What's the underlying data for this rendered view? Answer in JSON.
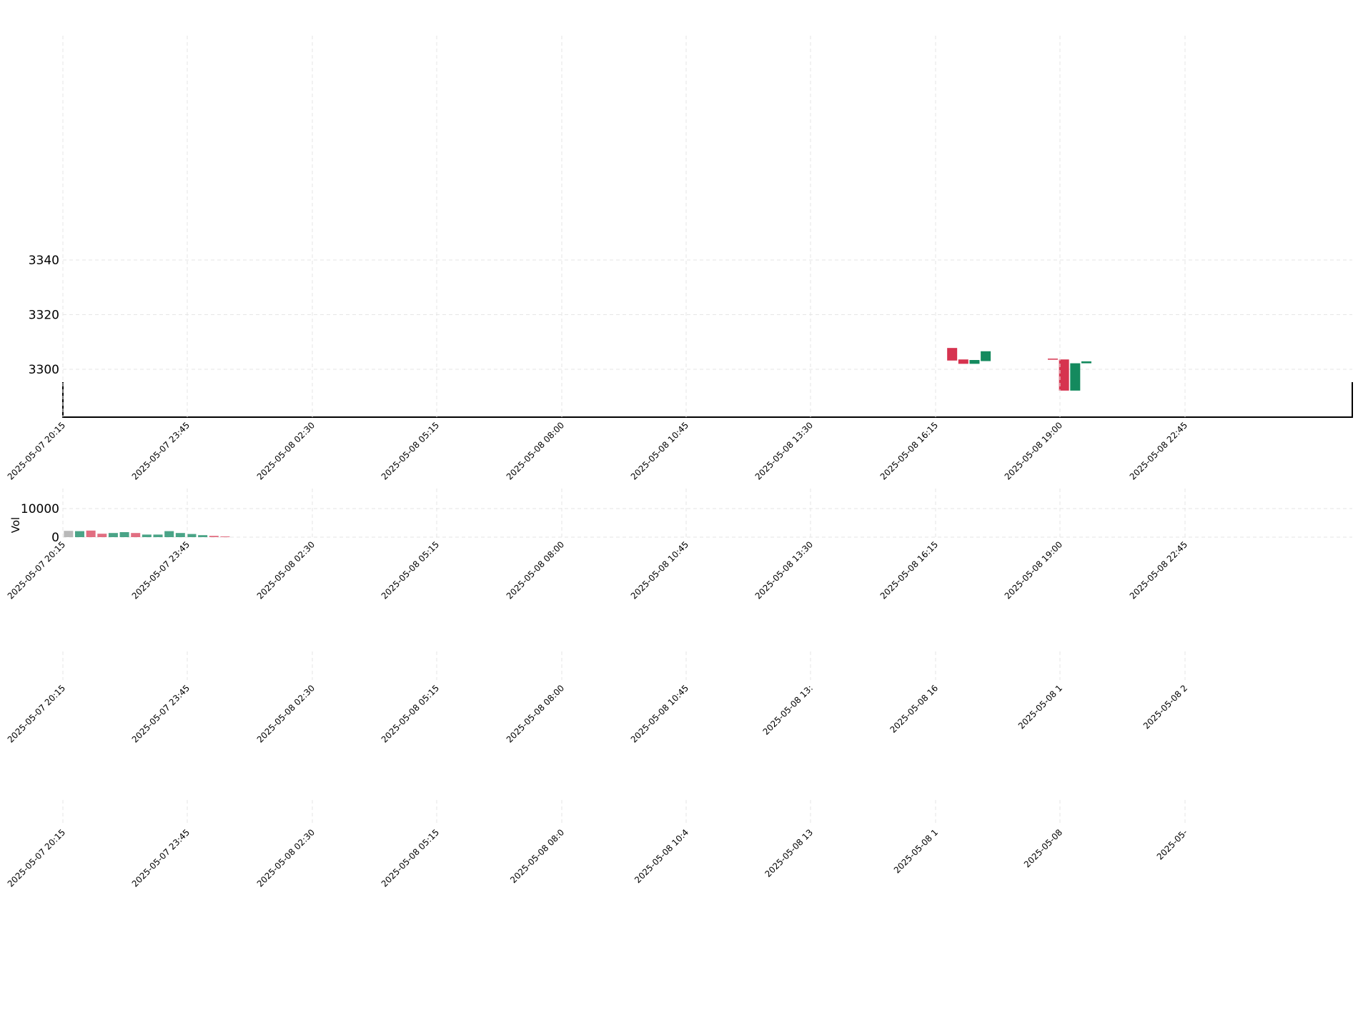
{
  "chart_data": {
    "type": "candlestick",
    "x_ticks": [
      "2025-05-07 20:15",
      "2025-05-07 23:45",
      "2025-05-08 02:30",
      "2025-05-08 05:15",
      "2025-05-08 08:00",
      "2025-05-08 10:45",
      "2025-05-08 13:30",
      "2025-05-08 16:15",
      "2025-05-08 19:00",
      "2025-05-08 22:45"
    ],
    "price_panel": {
      "yticks": [
        "3340",
        "3320",
        "3300"
      ],
      "ylim": [
        3283,
        3382
      ],
      "candles": [
        {
          "slot": 79,
          "open": 3307.8,
          "close": 3303.2,
          "high": 3307.8,
          "low": 3303.2,
          "color": "#d6334f"
        },
        {
          "slot": 80,
          "open": 3303.6,
          "close": 3302.0,
          "high": 3303.6,
          "low": 3302.0,
          "color": "#d6334f"
        },
        {
          "slot": 81,
          "open": 3302.0,
          "close": 3303.4,
          "high": 3303.4,
          "low": 3302.0,
          "color": "#148a5e"
        },
        {
          "slot": 82,
          "open": 3303.0,
          "close": 3306.6,
          "high": 3306.6,
          "low": 3303.0,
          "color": "#148a5e"
        },
        {
          "slot": 88,
          "open": 3303.9,
          "close": 3303.6,
          "high": 3303.9,
          "low": 3303.6,
          "color": "#d6334f"
        },
        {
          "slot": 89,
          "open": 3303.6,
          "close": 3292.2,
          "high": 3303.6,
          "low": 3292.2,
          "color": "#d6334f"
        },
        {
          "slot": 90,
          "open": 3292.2,
          "close": 3302.2,
          "high": 3302.2,
          "low": 3292.2,
          "color": "#148a5e"
        },
        {
          "slot": 91,
          "open": 3302.2,
          "close": 3302.9,
          "high": 3302.9,
          "low": 3302.2,
          "color": "#148a5e"
        }
      ]
    },
    "volume_panel": {
      "ylabel": "Vol",
      "yticks": [
        "10000",
        "0"
      ],
      "ylim": [
        0,
        14000
      ],
      "bars": [
        {
          "slot": 0,
          "value": 2200,
          "color": "#b9b9b9"
        },
        {
          "slot": 1,
          "value": 2100,
          "color": "#4aa487"
        },
        {
          "slot": 2,
          "value": 2300,
          "color": "#e16e81"
        },
        {
          "slot": 3,
          "value": 1200,
          "color": "#e16e81"
        },
        {
          "slot": 4,
          "value": 1450,
          "color": "#4aa487"
        },
        {
          "slot": 5,
          "value": 1750,
          "color": "#4aa487"
        },
        {
          "slot": 6,
          "value": 1450,
          "color": "#e16e81"
        },
        {
          "slot": 7,
          "value": 900,
          "color": "#4aa487"
        },
        {
          "slot": 8,
          "value": 900,
          "color": "#4aa487"
        },
        {
          "slot": 9,
          "value": 2100,
          "color": "#4aa487"
        },
        {
          "slot": 10,
          "value": 1450,
          "color": "#4aa487"
        },
        {
          "slot": 11,
          "value": 1100,
          "color": "#4aa487"
        },
        {
          "slot": 12,
          "value": 700,
          "color": "#4aa487"
        },
        {
          "slot": 13,
          "value": 450,
          "color": "#e16e81"
        },
        {
          "slot": 14,
          "value": 250,
          "color": "#e16e81"
        }
      ]
    }
  }
}
